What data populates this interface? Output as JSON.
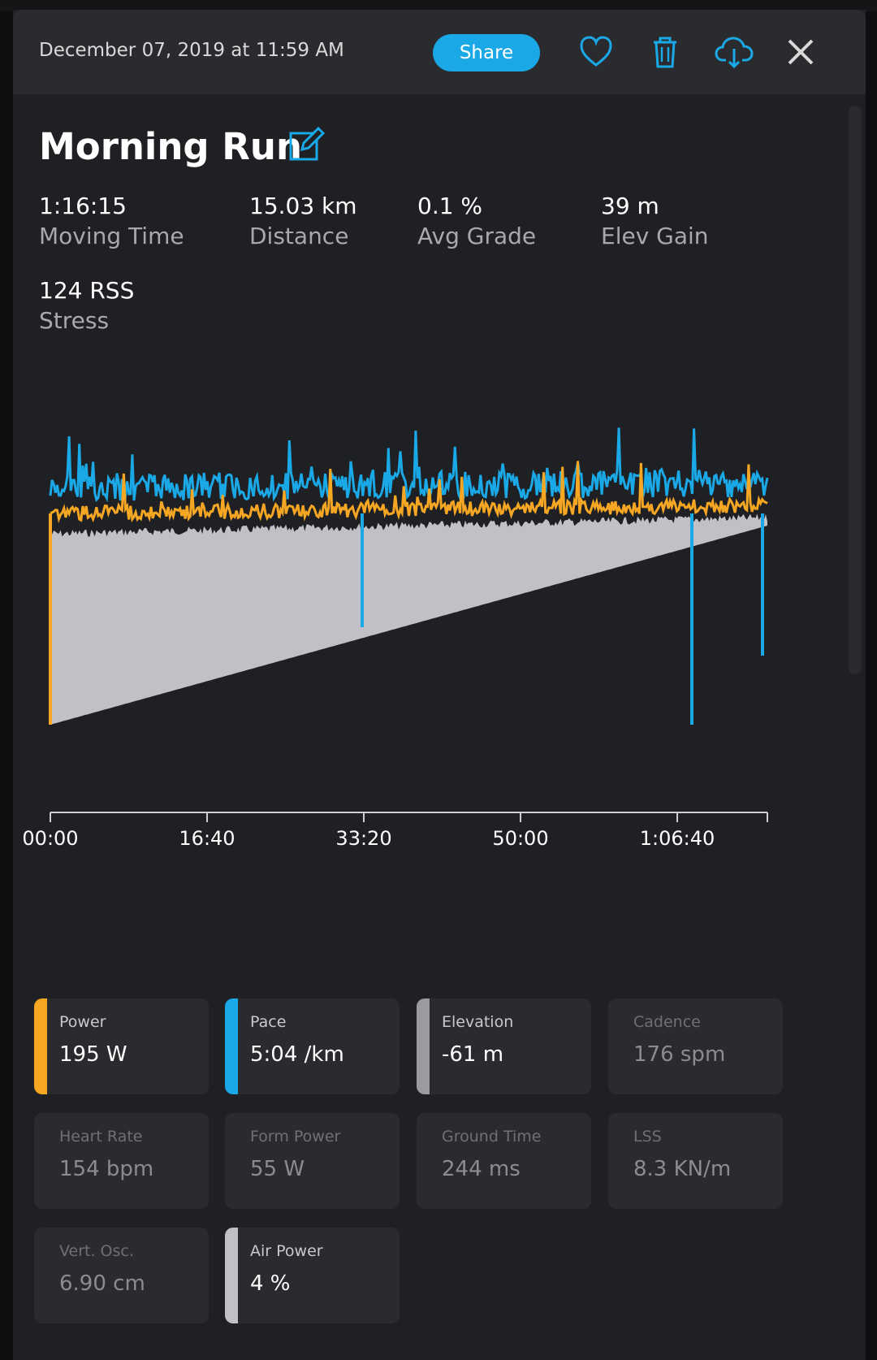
{
  "header": {
    "date": "December 07, 2019 at 11:59 AM",
    "share_label": "Share",
    "icons": [
      "heart-icon",
      "trash-icon",
      "cloud-download-icon",
      "close-icon"
    ]
  },
  "activity": {
    "title": "Morning Run",
    "stats": [
      {
        "value": "1:16:15",
        "label": "Moving Time"
      },
      {
        "value": "15.03 km",
        "label": "Distance"
      },
      {
        "value": "0.1 %",
        "label": "Avg Grade"
      },
      {
        "value": "39 m",
        "label": "Elev Gain"
      },
      {
        "value": "124 RSS",
        "label": "Stress"
      }
    ]
  },
  "colors": {
    "power": "#f5a623",
    "pace": "#1aa8e6",
    "elevation": "#c0c1c6",
    "air_power": "#c0c1c6"
  },
  "chart_data": {
    "type": "line",
    "x_ticks": [
      "00:00",
      "16:40",
      "33:20",
      "50:00",
      "1:06:40"
    ],
    "series": [
      {
        "name": "Power"
      },
      {
        "name": "Pace"
      },
      {
        "name": "Elevation"
      }
    ]
  },
  "metrics": [
    {
      "label": "Power",
      "value": "195 W",
      "active": true,
      "color": "#f5a623"
    },
    {
      "label": "Pace",
      "value": "5:04 /km",
      "active": true,
      "color": "#1aa8e6"
    },
    {
      "label": "Elevation",
      "value": "-61 m",
      "active": true,
      "color": "#9a9ba0"
    },
    {
      "label": "Cadence",
      "value": "176 spm",
      "active": false
    },
    {
      "label": "Heart Rate",
      "value": "154 bpm",
      "active": false
    },
    {
      "label": "Form Power",
      "value": "55 W",
      "active": false
    },
    {
      "label": "Ground Time",
      "value": "244 ms",
      "active": false
    },
    {
      "label": "LSS",
      "value": "8.3 KN/m",
      "active": false
    },
    {
      "label": "Vert. Osc.",
      "value": "6.90 cm",
      "active": false
    },
    {
      "label": "Air Power",
      "value": "4 %",
      "active": true,
      "color": "#c0c1c6"
    }
  ]
}
